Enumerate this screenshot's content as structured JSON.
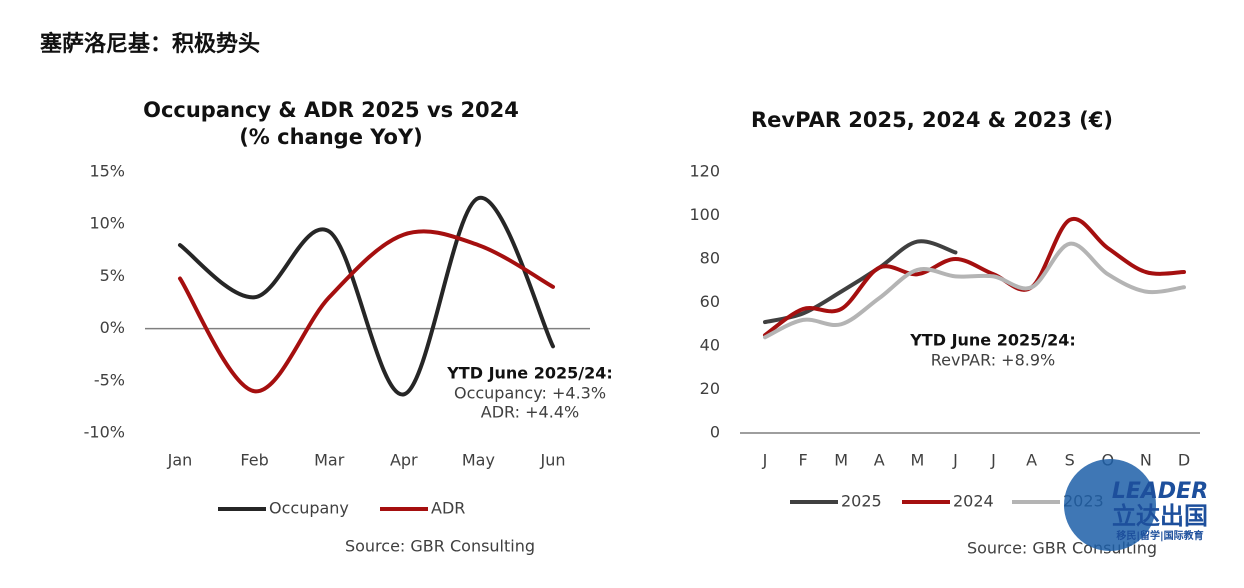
{
  "header": {
    "title": "塞萨洛尼基：积极势头"
  },
  "chart_data": [
    {
      "type": "line",
      "title": "Occupancy & ADR 2025 vs 2024",
      "subtitle": "(% change YoY)",
      "categories": [
        "Jan",
        "Feb",
        "Mar",
        "Apr",
        "May",
        "Jun"
      ],
      "series": [
        {
          "name": "Occupany",
          "color": "#262626",
          "values": [
            8,
            3,
            9.3,
            -6.3,
            12.5,
            -1.7
          ]
        },
        {
          "name": "ADR",
          "color": "#a50f0f",
          "values": [
            4.8,
            -6,
            3,
            9,
            8,
            4
          ]
        }
      ],
      "ylim": [
        -10,
        15
      ],
      "yticks": [
        {
          "value": -10,
          "label": "-10%"
        },
        {
          "value": -5,
          "label": "-5%"
        },
        {
          "value": 0,
          "label": "0%"
        },
        {
          "value": 5,
          "label": "5%"
        },
        {
          "value": 10,
          "label": "10%"
        },
        {
          "value": 15,
          "label": "15%"
        }
      ],
      "annotations": [
        "YTD June 2025/24:",
        "Occupancy: +4.3%",
        "ADR: +4.4%"
      ],
      "source": "Source: GBR Consulting"
    },
    {
      "type": "line",
      "title": "RevPAR 2025, 2024 & 2023 (€)",
      "categories": [
        "J",
        "F",
        "M",
        "A",
        "M",
        "J",
        "J",
        "A",
        "S",
        "O",
        "N",
        "D"
      ],
      "series": [
        {
          "name": "2025",
          "color": "#404040",
          "values": [
            51,
            55,
            65,
            76,
            88,
            83,
            null,
            null,
            null,
            null,
            null,
            null
          ]
        },
        {
          "name": "2024",
          "color": "#a50f0f",
          "values": [
            45,
            57,
            57,
            76,
            73,
            80,
            73,
            67,
            98,
            85,
            74,
            74
          ]
        },
        {
          "name": "2023",
          "color": "#b4b4b4",
          "values": [
            44,
            52,
            50,
            62,
            75,
            72,
            72,
            67,
            87,
            73,
            65,
            67
          ]
        }
      ],
      "ylim": [
        0,
        120
      ],
      "yticks": [
        0,
        20,
        40,
        60,
        80,
        100,
        120
      ],
      "annotations": [
        "YTD June 2025/24:",
        "RevPAR: +8.9%"
      ],
      "source": "Source: GBR Consulting"
    }
  ],
  "logo": {
    "name": "LEADER",
    "chinese": "立达出国",
    "tagline": "移民|留学|国际教育"
  }
}
